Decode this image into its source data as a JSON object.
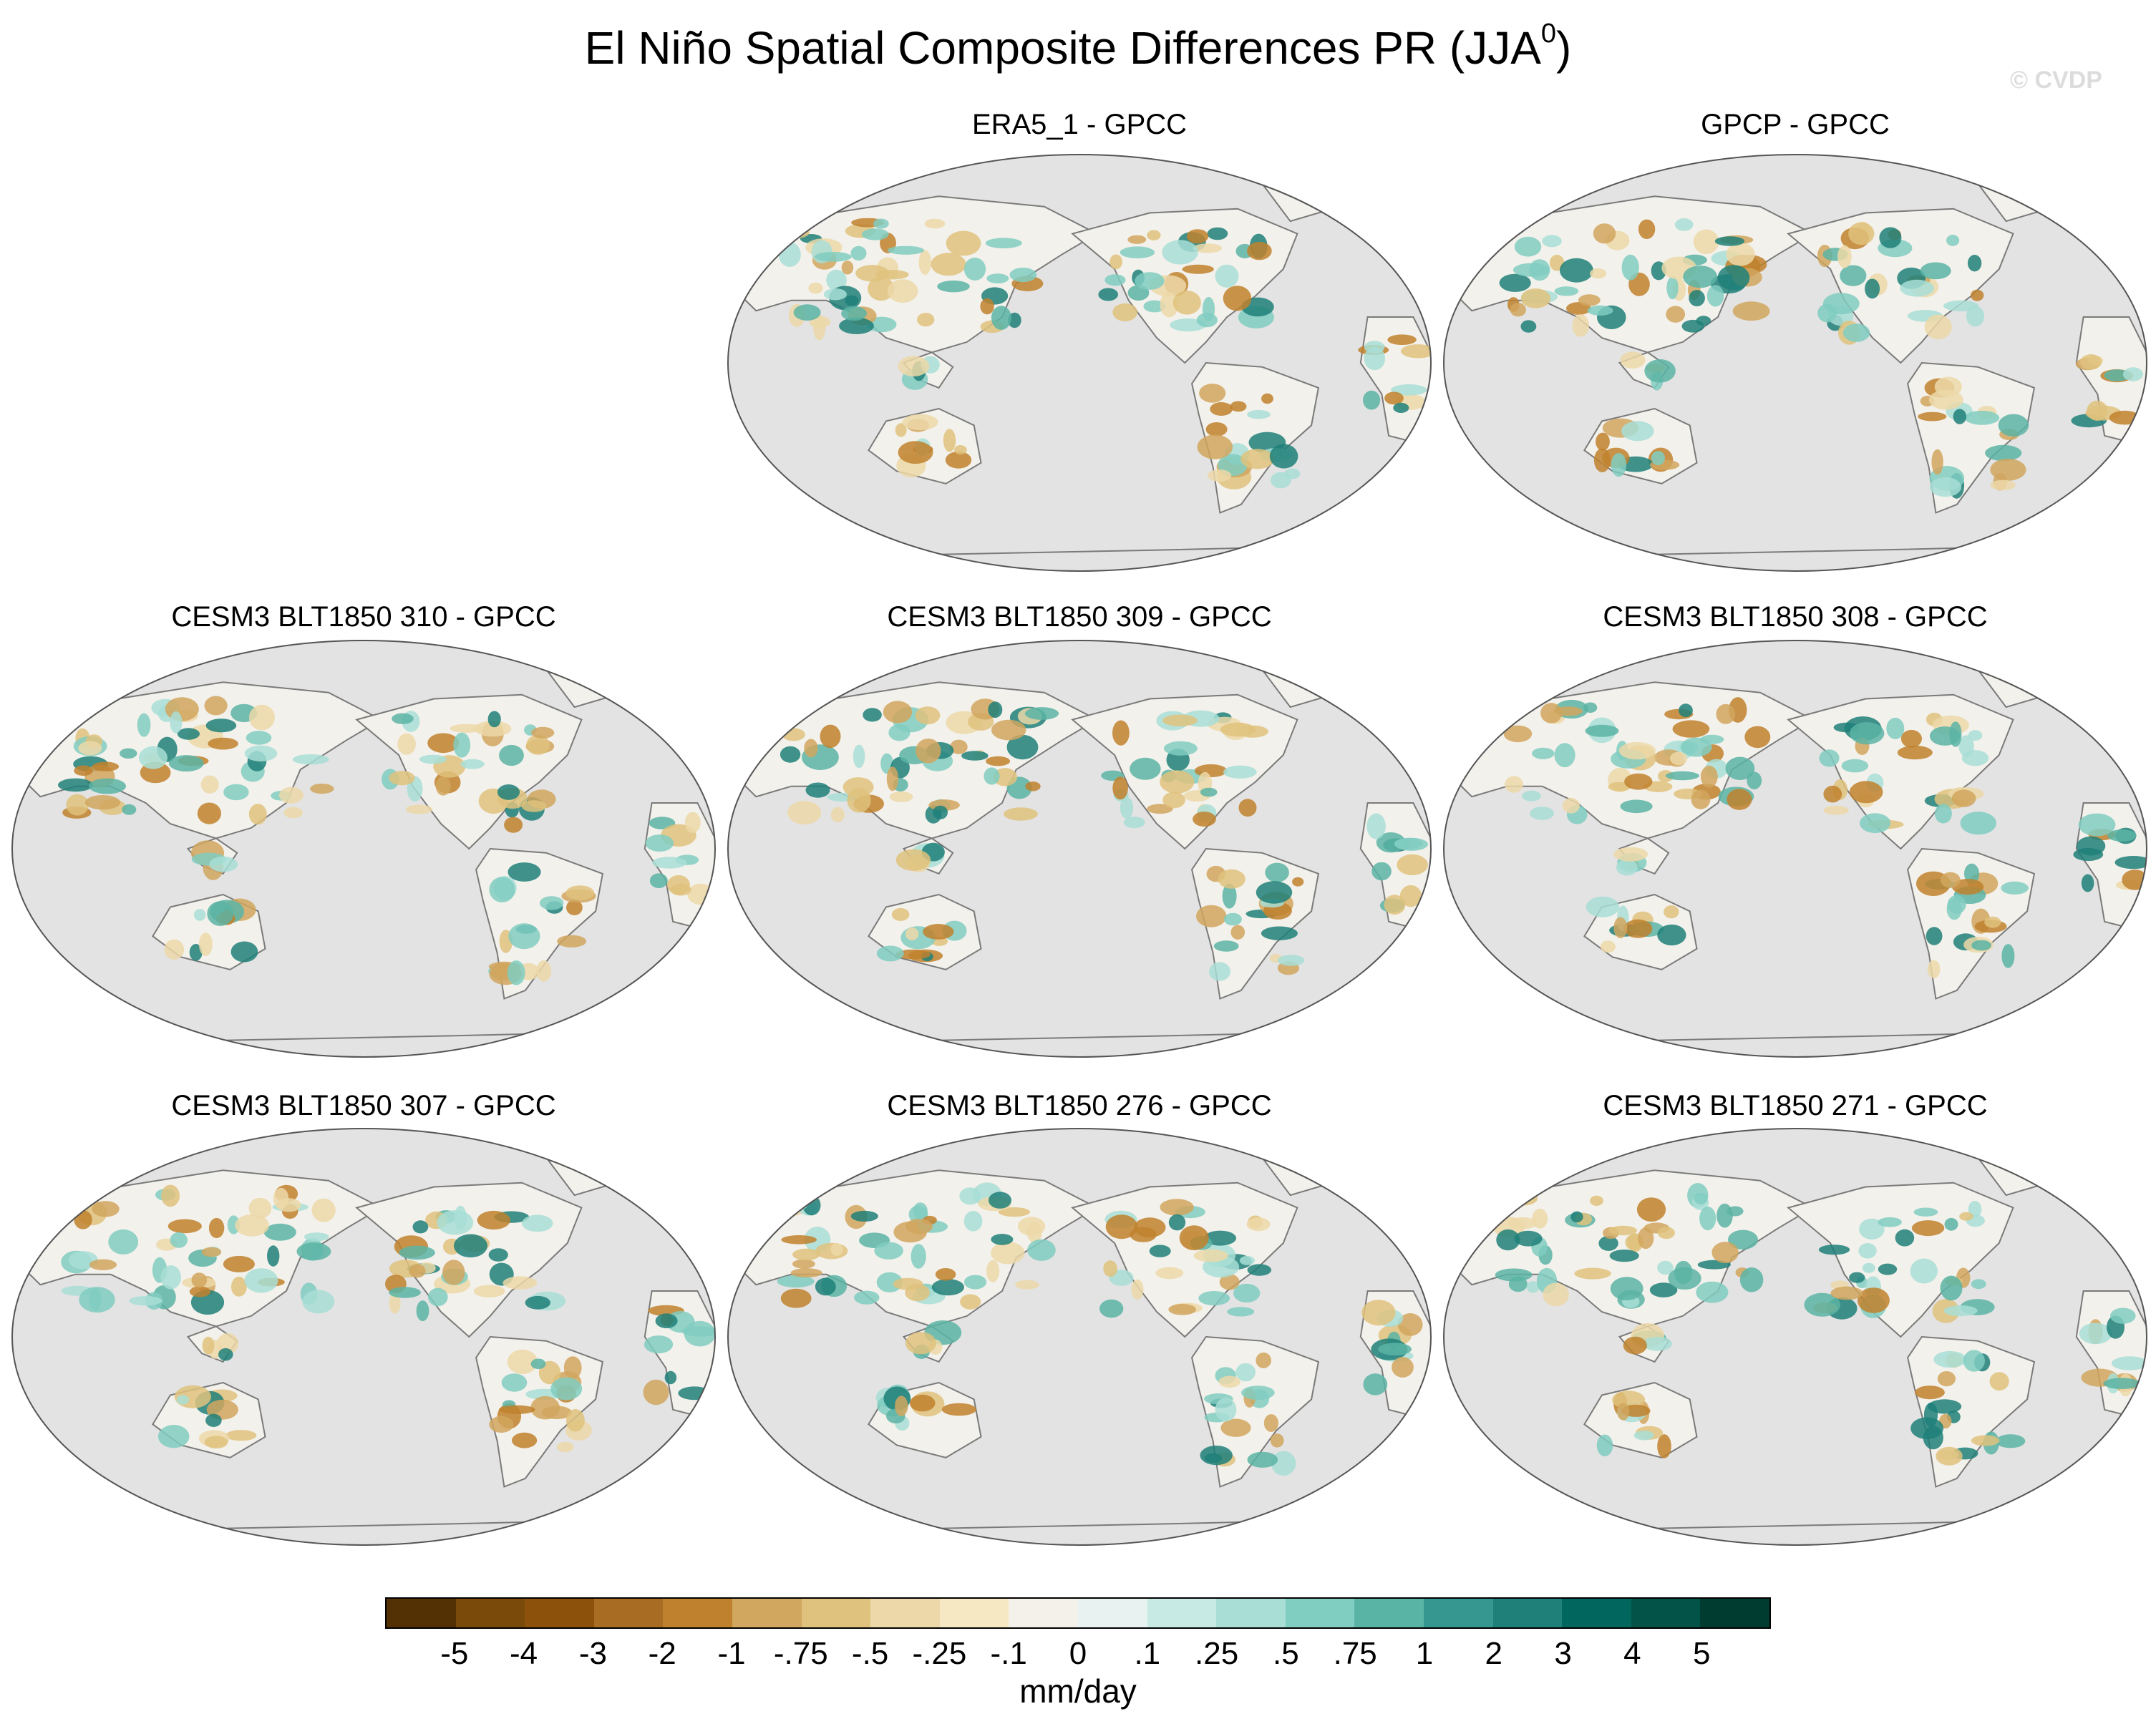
{
  "title": "El Niño Spatial Composite Differences PR (JJA",
  "title_superscript": "0",
  "title_close": ")",
  "watermark": "© CVDP",
  "ocean_color": "#e3e3e3",
  "land_color": "#f3f1ec",
  "panels": [
    {
      "title": "ERA5_1 - GPCC",
      "row": 0,
      "col": 1
    },
    {
      "title": "GPCP - GPCC",
      "row": 0,
      "col": 2
    },
    {
      "title": "CESM3 BLT1850 310 - GPCC",
      "row": 1,
      "col": 0
    },
    {
      "title": "CESM3 BLT1850 309 - GPCC",
      "row": 1,
      "col": 1
    },
    {
      "title": "CESM3 BLT1850 308 - GPCC",
      "row": 1,
      "col": 2
    },
    {
      "title": "CESM3 BLT1850 307 - GPCC",
      "row": 2,
      "col": 0
    },
    {
      "title": "CESM3 BLT1850 276 - GPCC",
      "row": 2,
      "col": 1
    },
    {
      "title": "CESM3 BLT1850 271 - GPCC",
      "row": 2,
      "col": 2
    }
  ],
  "colorbar": {
    "units": "mm/day",
    "colors": [
      "#543005",
      "#7a4a0b",
      "#8c510a",
      "#a86c23",
      "#bf812d",
      "#d1a65e",
      "#dfc27d",
      "#ecd8a8",
      "#f6e8c3",
      "#f4f1ea",
      "#e8f3f1",
      "#c7eae5",
      "#a8ded6",
      "#80cdc1",
      "#5ab4a5",
      "#35978f",
      "#1f8079",
      "#01665e",
      "#045348",
      "#003c30"
    ],
    "ticks": [
      "-5",
      "-4",
      "-3",
      "-2",
      "-1",
      "-.75",
      "-.5",
      "-.25",
      "-.1",
      "0",
      ".1",
      ".25",
      ".5",
      ".75",
      "1",
      "2",
      "3",
      "4",
      "5"
    ]
  }
}
